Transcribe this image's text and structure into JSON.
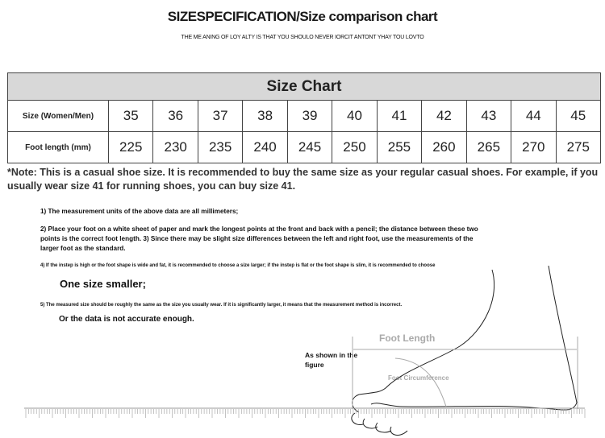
{
  "header": {
    "title": "SIZESPECIFICATION/Size comparison chart",
    "motto": "THE ME ANING OF LOY ALTY IS THAT YOU SHOULO NEVER IORCIT ANTONT YHAY TOU LOVTO"
  },
  "table": {
    "title": "Size Chart",
    "rows": [
      {
        "label": "Size (Women/Men)",
        "values": [
          "35",
          "36",
          "37",
          "38",
          "39",
          "40",
          "41",
          "42",
          "43",
          "44",
          "45"
        ]
      },
      {
        "label": "Foot length (mm)",
        "values": [
          "225",
          "230",
          "235",
          "240",
          "245",
          "250",
          "255",
          "260",
          "265",
          "270",
          "275"
        ]
      }
    ]
  },
  "note": "*Note: This is a casual shoe size. It is recommended to buy the same size as your regular casual shoes. For example, if you usually wear size 41 for running shoes, you can buy size 41.",
  "instructions": {
    "i1": "1) The measurement units of the above data are all millimeters;",
    "i2": "2) Place your foot on a white sheet of paper and mark the longest points at the front and back with a pencil; the distance between these two points is the correct foot length. 3) Since there may be slight size differences between the left and right foot, use the measurements of the larger foot as the standard.",
    "i4": "4) If the instep is high or the foot shape is wide and fat, it is recommended to choose a size larger; if the instep is flat or the foot shape is slim, it is recommended to choose",
    "i4b": "One size smaller;",
    "i5": "5) The measured size should be roughly the same as the size you usually wear. If it is significantly larger, it means that the measurement method is incorrect.",
    "i5b": "Or the data is not accurate enough."
  },
  "figure": {
    "caption": "As shown in the figure",
    "foot_length": "Foot Length",
    "foot_circumference": "Foot Circumference"
  }
}
